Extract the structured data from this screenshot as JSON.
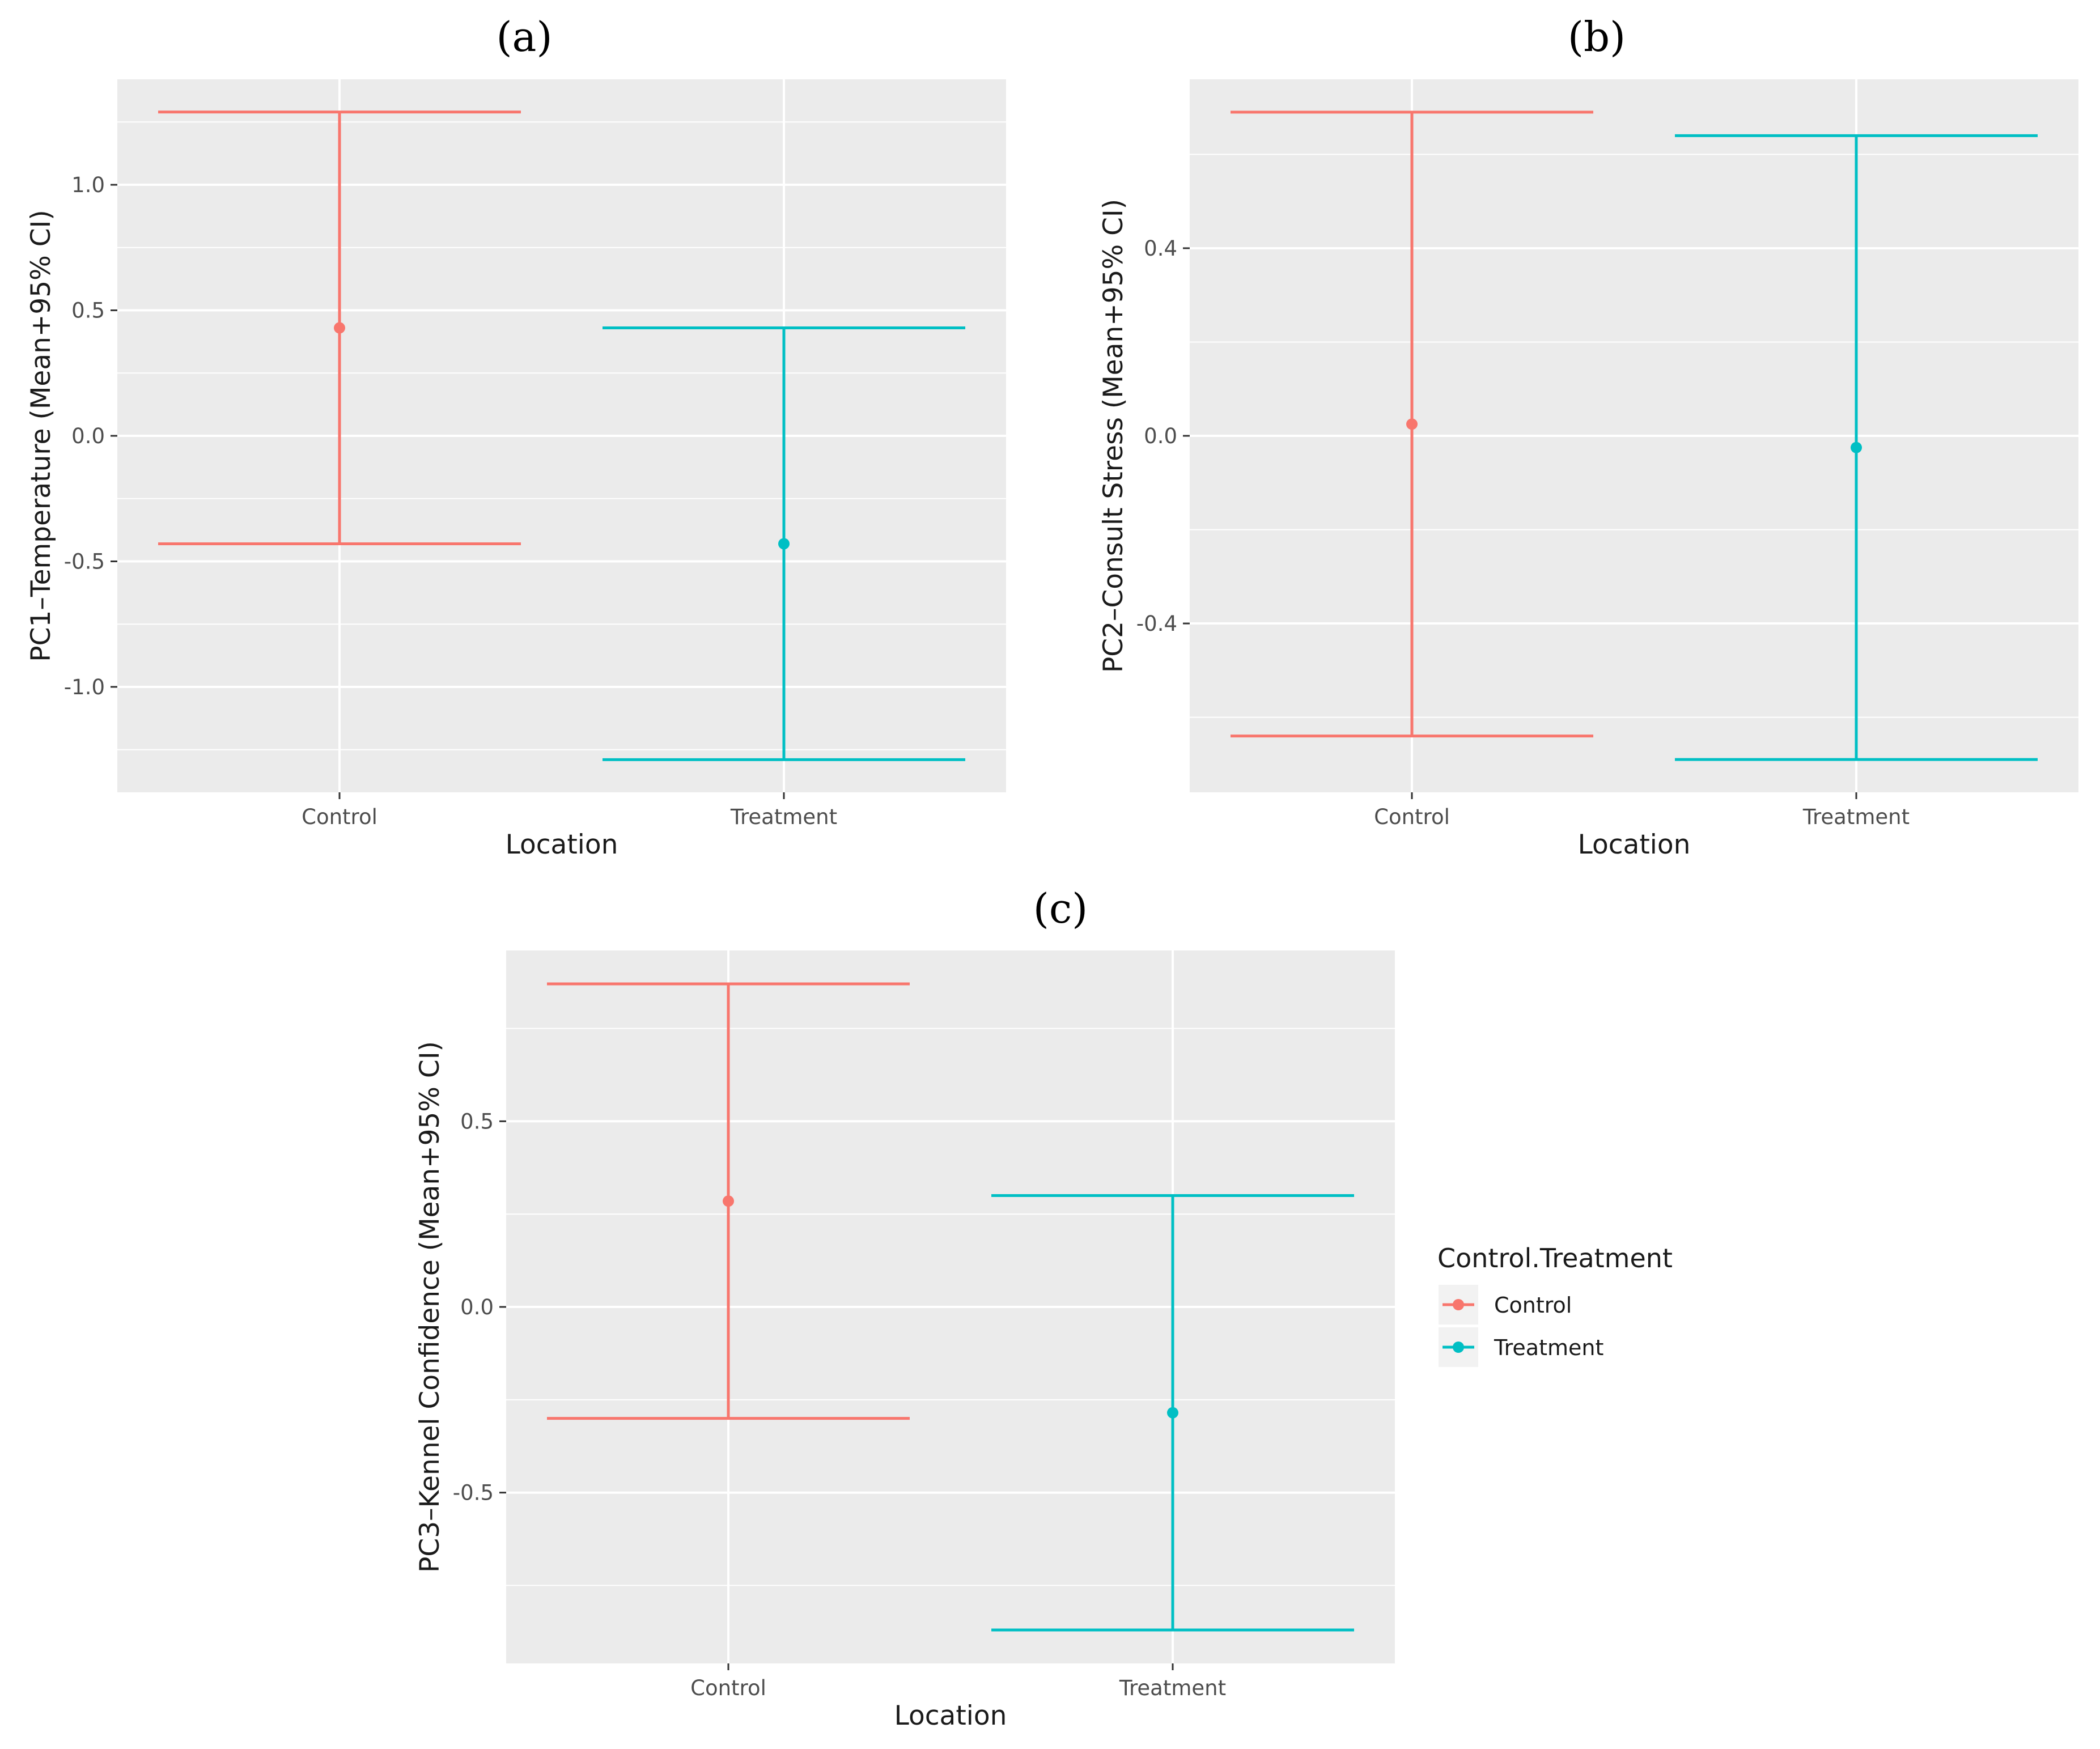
{
  "colors": {
    "control": "#F8766D",
    "treatment": "#00BFC4",
    "panel_bg": "#EBEBEB",
    "grid": "#FFFFFF",
    "tick": "#333333"
  },
  "legend": {
    "title": "Control.Treatment",
    "items": [
      {
        "label": "Control",
        "color": "#F8766D"
      },
      {
        "label": "Treatment",
        "color": "#00BFC4"
      }
    ]
  },
  "chart_data": [
    {
      "panel": "(a)",
      "type": "errorbar",
      "xlabel": "Location",
      "ylabel": "PC1–Temperature (Mean+95% CI)",
      "categories": [
        "Control",
        "Treatment"
      ],
      "ylim": [
        -1.42,
        1.42
      ],
      "yticks": [
        -1.0,
        -0.5,
        0.0,
        0.5,
        1.0
      ],
      "ytick_labels": [
        "-1.0",
        "-0.5",
        "0.0",
        "0.5",
        "1.0"
      ],
      "series": [
        {
          "name": "Control",
          "mean": 0.43,
          "lower": -0.43,
          "upper": 1.29
        },
        {
          "name": "Treatment",
          "mean": -0.43,
          "lower": -1.29,
          "upper": 0.43
        }
      ]
    },
    {
      "panel": "(b)",
      "type": "errorbar",
      "xlabel": "Location",
      "ylabel": "PC2–Consult Stress (Mean+95% CI)",
      "categories": [
        "Control",
        "Treatment"
      ],
      "ylim": [
        -0.76,
        0.76
      ],
      "yticks": [
        -0.4,
        0.0,
        0.4
      ],
      "ytick_labels": [
        "-0.4",
        "0.0",
        "0.4"
      ],
      "series": [
        {
          "name": "Control",
          "mean": 0.025,
          "lower": -0.64,
          "upper": 0.69
        },
        {
          "name": "Treatment",
          "mean": -0.025,
          "lower": -0.69,
          "upper": 0.64
        }
      ]
    },
    {
      "panel": "(c)",
      "type": "errorbar",
      "xlabel": "Location",
      "ylabel": "PC3–Kennel Confidence (Mean+95% CI)",
      "categories": [
        "Control",
        "Treatment"
      ],
      "ylim": [
        -0.96,
        0.96
      ],
      "yticks": [
        -0.5,
        0.0,
        0.5
      ],
      "ytick_labels": [
        "-0.5",
        "0.0",
        "0.5"
      ],
      "series": [
        {
          "name": "Control",
          "mean": 0.285,
          "lower": -0.3,
          "upper": 0.87
        },
        {
          "name": "Treatment",
          "mean": -0.285,
          "lower": -0.87,
          "upper": 0.3
        }
      ]
    }
  ]
}
